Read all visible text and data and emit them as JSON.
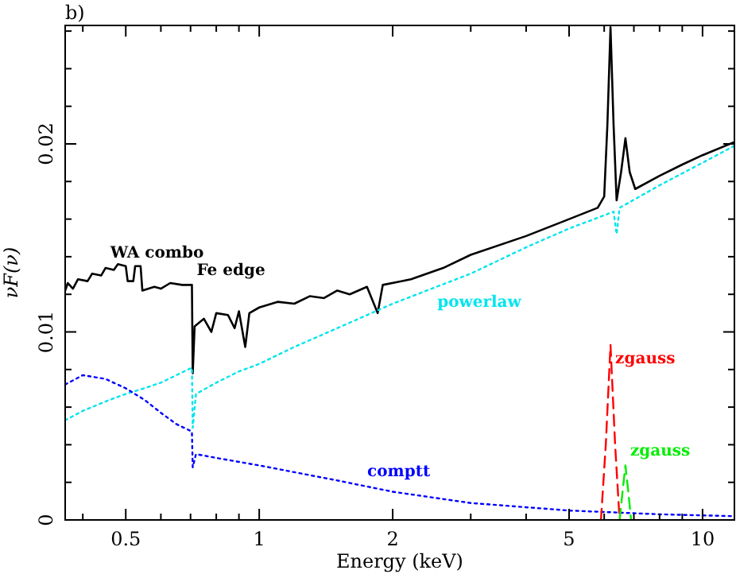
{
  "chart_data": {
    "type": "line",
    "title": "b)",
    "xlabel": "Energy (keV)",
    "ylabel": "νF(ν)",
    "log": "x",
    "xlim": [
      0.365,
      11.8
    ],
    "ylim": [
      0,
      0.0263
    ],
    "xticks": [
      {
        "value": 0.4,
        "label": null
      },
      0.5,
      {
        "value": 0.6,
        "label": null
      },
      {
        "value": 0.7,
        "label": null
      },
      {
        "value": 0.8,
        "label": null
      },
      {
        "value": 0.9,
        "label": null
      },
      1,
      2,
      {
        "value": 3,
        "label": null
      },
      {
        "value": 4,
        "label": null
      },
      5,
      {
        "value": 6,
        "label": null
      },
      {
        "value": 7,
        "label": null
      },
      {
        "value": 8,
        "label": null
      },
      {
        "value": 9,
        "label": null
      },
      10
    ],
    "yticks": [
      0,
      {
        "value": 0.002,
        "label": null
      },
      {
        "value": 0.004,
        "label": null
      },
      {
        "value": 0.006,
        "label": null
      },
      {
        "value": 0.008,
        "label": null
      },
      0.01,
      {
        "value": 0.012,
        "label": null
      },
      {
        "value": 0.014,
        "label": null
      },
      {
        "value": 0.016,
        "label": null
      },
      {
        "value": 0.018,
        "label": null
      },
      0.02,
      {
        "value": 0.022,
        "label": null
      },
      {
        "value": 0.024,
        "label": null
      },
      {
        "value": 0.026,
        "label": null
      }
    ],
    "grid": false,
    "series": [
      {
        "color": "#000000",
        "line_style": "solid",
        "x": [
          0.365,
          0.37,
          0.38,
          0.39,
          0.41,
          0.42,
          0.44,
          0.45,
          0.47,
          0.48,
          0.5,
          0.505,
          0.52,
          0.525,
          0.54,
          0.545,
          0.58,
          0.6,
          0.63,
          0.67,
          0.705,
          0.708,
          0.715,
          0.75,
          0.78,
          0.8,
          0.85,
          0.88,
          0.9,
          0.93,
          0.95,
          1.0,
          1.1,
          1.2,
          1.3,
          1.4,
          1.5,
          1.6,
          1.75,
          1.85,
          1.9,
          2.2,
          2.6,
          3.0,
          4.0,
          5.0,
          5.8,
          6.0,
          6.1,
          6.2,
          6.3,
          6.4,
          6.55,
          6.7,
          6.85,
          7.05,
          8.0,
          9.0,
          10,
          11.8
        ],
        "values": [
          0.0122,
          0.0126,
          0.0123,
          0.0128,
          0.0127,
          0.0131,
          0.013,
          0.0134,
          0.0133,
          0.0136,
          0.0135,
          0.0127,
          0.0127,
          0.0135,
          0.0135,
          0.0122,
          0.0124,
          0.0123,
          0.0126,
          0.0125,
          0.0125,
          0.0078,
          0.0103,
          0.0107,
          0.01,
          0.011,
          0.0109,
          0.0102,
          0.0111,
          0.0092,
          0.011,
          0.0113,
          0.0116,
          0.0115,
          0.0119,
          0.0118,
          0.0122,
          0.012,
          0.0124,
          0.011,
          0.0125,
          0.0128,
          0.0134,
          0.0141,
          0.0151,
          0.016,
          0.0166,
          0.0172,
          0.021,
          0.0262,
          0.021,
          0.017,
          0.0185,
          0.0203,
          0.0185,
          0.0176,
          0.0183,
          0.0189,
          0.0194,
          0.0201
        ]
      },
      {
        "color": "#00e5ee",
        "line_style": "dotted",
        "x": [
          0.365,
          0.4,
          0.45,
          0.5,
          0.55,
          0.6,
          0.65,
          0.705,
          0.708,
          0.72,
          0.8,
          0.9,
          1.0,
          1.2,
          1.5,
          2.0,
          3.0,
          4.0,
          5.0,
          6.0,
          6.3,
          6.4,
          6.5,
          8.0,
          10,
          11.8
        ],
        "values": [
          0.0053,
          0.0058,
          0.0063,
          0.0067,
          0.007,
          0.0073,
          0.0077,
          0.0081,
          0.0049,
          0.0067,
          0.0073,
          0.0079,
          0.0083,
          0.0092,
          0.0102,
          0.0115,
          0.0131,
          0.0145,
          0.0155,
          0.0162,
          0.0164,
          0.0152,
          0.0166,
          0.0178,
          0.019,
          0.0199
        ]
      },
      {
        "color": "#0000ff",
        "line_style": "dotted",
        "x": [
          0.365,
          0.4,
          0.45,
          0.5,
          0.55,
          0.6,
          0.65,
          0.705,
          0.708,
          0.72,
          0.8,
          1.0,
          1.5,
          2.0,
          3.0,
          5.0,
          8.0,
          11.8
        ],
        "values": [
          0.0072,
          0.0077,
          0.0075,
          0.007,
          0.0064,
          0.0057,
          0.0051,
          0.0047,
          0.0028,
          0.0035,
          0.0033,
          0.0029,
          0.0021,
          0.0015,
          0.0009,
          0.0005,
          0.0003,
          0.0002
        ]
      },
      {
        "color": "#ff0000",
        "line_style": "dashed",
        "x": [
          5.9,
          6.05,
          6.2,
          6.35,
          6.5
        ],
        "values": [
          0,
          0.004,
          0.0093,
          0.004,
          0
        ]
      },
      {
        "color": "#00ee00",
        "line_style": "dashed",
        "x": [
          6.5,
          6.6,
          6.7,
          6.8,
          6.9
        ],
        "values": [
          0,
          0.0015,
          0.0029,
          0.0015,
          0
        ]
      }
    ],
    "annotations": [
      {
        "text": "WA combo",
        "x": 0.45,
        "y": 0.0134
      },
      {
        "text": "Fe edge",
        "x": 0.705,
        "y": 0.0125
      },
      {
        "text": "powerlaw",
        "x": 2.46,
        "y": 0.0123
      },
      {
        "text": "comptt",
        "x": 1.71,
        "y": 0.0018
      },
      {
        "text": "zgauss",
        "x": 6.2,
        "y": 0.0093
      },
      {
        "text": "zgauss",
        "x": 6.7,
        "y": 0.0029
      }
    ]
  }
}
